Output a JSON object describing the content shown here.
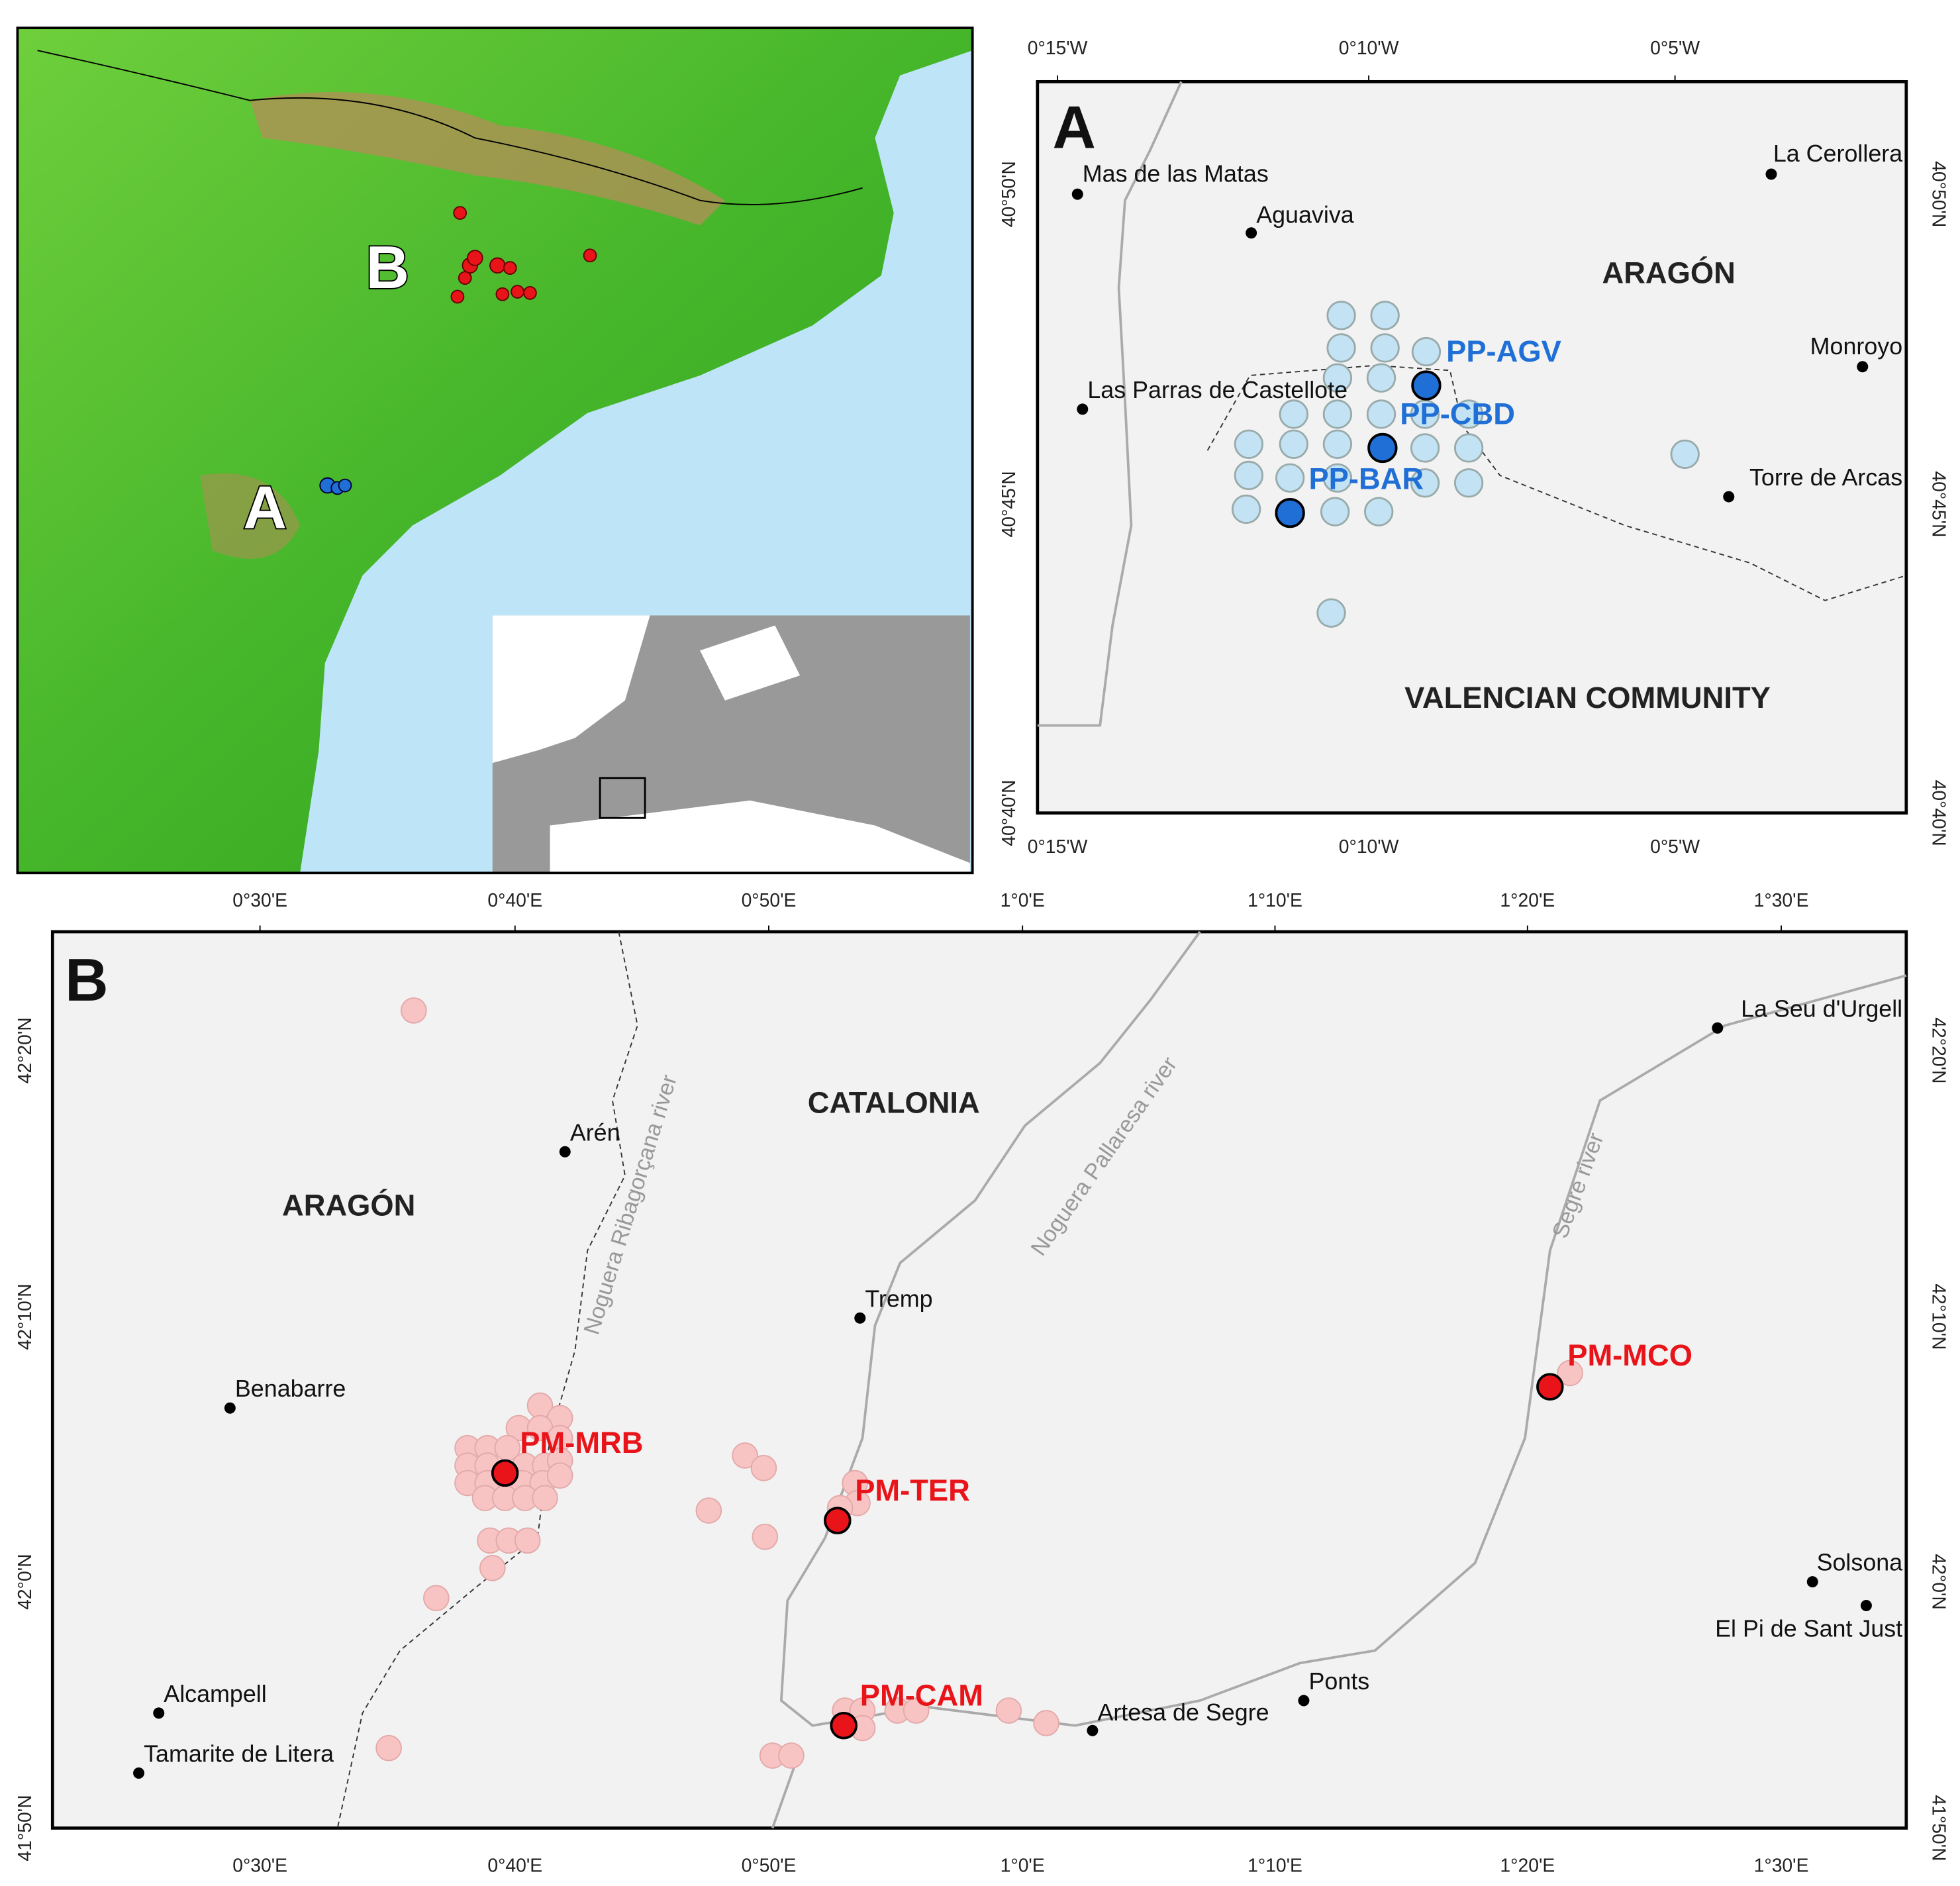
{
  "overview": {
    "labels": [
      "B",
      "A"
    ]
  },
  "panel_a": {
    "letter": "A",
    "x_ticks": [
      "0°15'W",
      "0°10'W",
      "0°5'W"
    ],
    "y_ticks": [
      "40°50'N",
      "40°45'N",
      "40°40'N"
    ],
    "places": [
      "Mas de las Matas",
      "Aguaviva",
      "La Cerollera",
      "Monroyo",
      "Las Parras de Castellote",
      "Torre de Arcas"
    ],
    "regions": [
      "ARAGÓN",
      "VALENCIAN COMMUNITY"
    ],
    "sites": [
      "PP-AGV",
      "PP-CBD",
      "PP-BAR"
    ]
  },
  "panel_b": {
    "letter": "B",
    "x_ticks": [
      "0°30'E",
      "0°40'E",
      "0°50'E",
      "1°0'E",
      "1°10'E",
      "1°20'E",
      "1°30'E"
    ],
    "y_ticks": [
      "42°20'N",
      "42°10'N",
      "42°0'N",
      "41°50'N"
    ],
    "places": [
      "La Seu d'Urgell",
      "Arén",
      "Tremp",
      "Benabarre",
      "Solsona",
      "El Pi de Sant Just",
      "Alcampell",
      "Tamarite de Litera",
      "Ponts",
      "Artesa de Segre"
    ],
    "regions": [
      "CATALONIA",
      "ARAGÓN"
    ],
    "rivers": [
      "Noguera Ribagorçana river",
      "Noguera Pallaresa river",
      "Segre river"
    ],
    "sites": [
      "PM-MRB",
      "PM-TER",
      "PM-MCO",
      "PM-CAM"
    ]
  }
}
